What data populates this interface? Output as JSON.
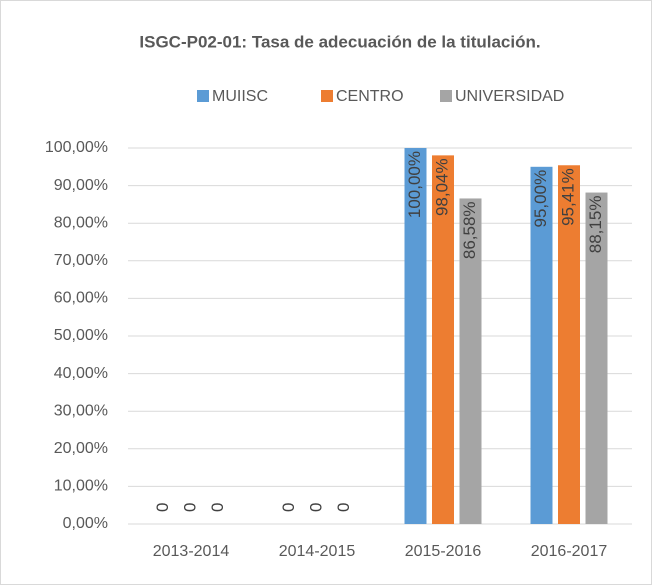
{
  "chart_data": {
    "type": "bar",
    "title": "ISGC-P02-01: Tasa de adecuación de la titulación.",
    "categories": [
      "2013-2014",
      "2014-2015",
      "2015-2016",
      "2016-2017"
    ],
    "series": [
      {
        "name": "MUIISC",
        "color": "#5b9bd5",
        "values": [
          0,
          0,
          100,
          95
        ],
        "value_labels": [
          "0",
          "0",
          "100,00%",
          "95,00%"
        ]
      },
      {
        "name": "CENTRO",
        "color": "#ed7d31",
        "values": [
          0,
          0,
          98.04,
          95.41
        ],
        "value_labels": [
          "0",
          "0",
          "98,04%",
          "95,41%"
        ]
      },
      {
        "name": "UNIVERSIDAD",
        "color": "#a5a5a5",
        "values": [
          0,
          0,
          86.58,
          88.15
        ],
        "value_labels": [
          "0",
          "0",
          "86,58%",
          "88,15%"
        ]
      }
    ],
    "ylim": [
      0,
      100
    ],
    "yticks": [
      {
        "value": 0,
        "label": "0,00%"
      },
      {
        "value": 10,
        "label": "10,00%"
      },
      {
        "value": 20,
        "label": "20,00%"
      },
      {
        "value": 30,
        "label": "30,00%"
      },
      {
        "value": 40,
        "label": "40,00%"
      },
      {
        "value": 50,
        "label": "50,00%"
      },
      {
        "value": 60,
        "label": "60,00%"
      },
      {
        "value": 70,
        "label": "70,00%"
      },
      {
        "value": 80,
        "label": "80,00%"
      },
      {
        "value": 90,
        "label": "90,00%"
      },
      {
        "value": 100,
        "label": "100,00%"
      }
    ],
    "grid": true,
    "legend": "top"
  }
}
